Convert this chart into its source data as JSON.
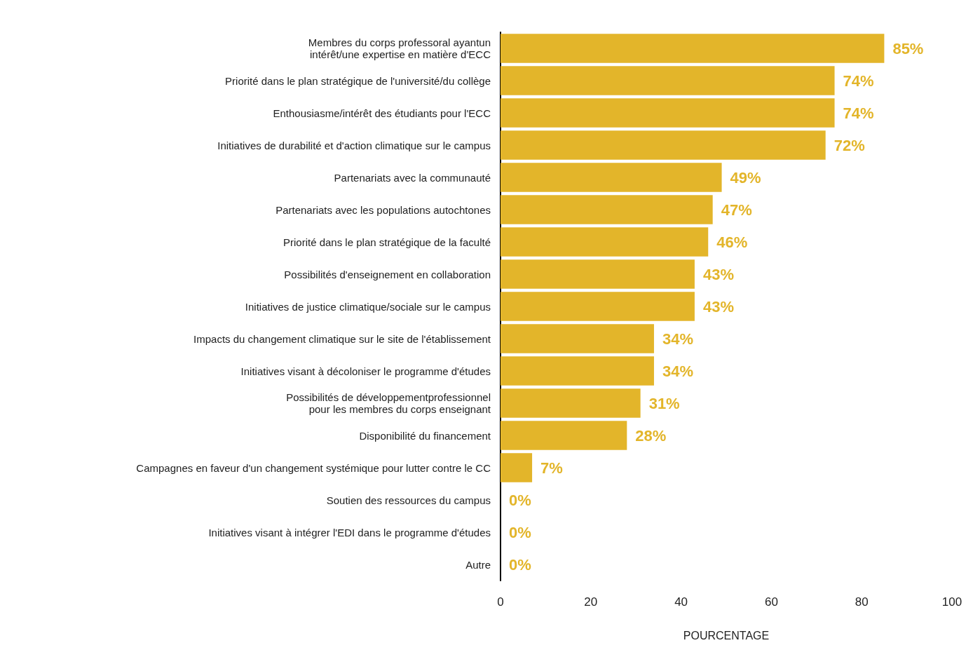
{
  "chart_data": {
    "type": "bar",
    "orientation": "horizontal",
    "xlabel": "POURCENTAGE",
    "categories": [
      "Membres du corps professoral ayantun\nintérêt/une expertise en matière d'ECC",
      "Priorité dans le plan stratégique de l'université/du collège",
      "Enthousiasme/intérêt des étudiants pour l'ECC",
      "Initiatives de durabilité et d'action climatique sur le campus",
      "Partenariats avec la communauté",
      "Partenariats avec les populations autochtones",
      "Priorité dans le plan stratégique de la faculté",
      "Possibilités d'enseignement en collaboration",
      "Initiatives de justice climatique/sociale sur le campus",
      "Impacts du changement climatique sur le site de l'établissement",
      "Initiatives visant à décoloniser le programme d'études",
      "Possibilités de développementprofessionnel\npour les membres du corps enseignant",
      "Disponibilité du financement",
      "Campagnes en faveur d'un changement systémique pour lutter contre le CC",
      "Soutien des ressources du campus",
      "Initiatives visant à intégrer l'EDI dans le programme d'études",
      "Autre"
    ],
    "values": [
      85,
      74,
      74,
      72,
      49,
      47,
      46,
      43,
      43,
      34,
      34,
      31,
      28,
      7,
      0,
      0,
      0
    ],
    "value_labels": [
      "85%",
      "74%",
      "74%",
      "72%",
      "49%",
      "47%",
      "46%",
      "43%",
      "43%",
      "34%",
      "34%",
      "31%",
      "28%",
      "7%",
      "0%",
      "0%",
      "0%"
    ],
    "color": "#e3b52a",
    "xlim": [
      0,
      100
    ],
    "xticks": [
      0,
      20,
      40,
      60,
      80,
      100
    ],
    "grid": false
  }
}
